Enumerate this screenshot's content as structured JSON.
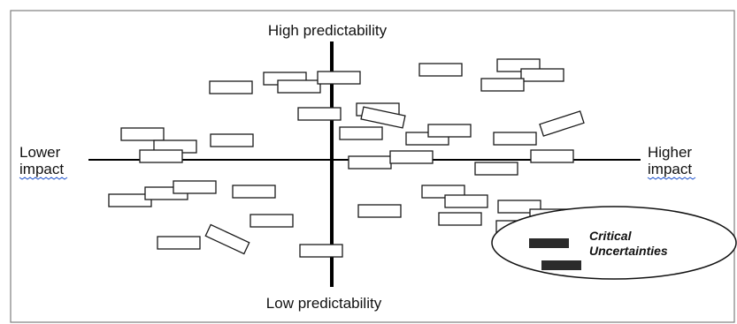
{
  "axes": {
    "top_label": "High predictability",
    "bottom_label": "Low predictability",
    "left_label_line1": "Lower",
    "left_label_line2": "impact",
    "right_label_line1": "Higher",
    "right_label_line2": "impact"
  },
  "callout": {
    "line1": "Critical",
    "line2": "Uncertainties"
  },
  "colors": {
    "axis": "#000000",
    "box_stroke": "#1a1a1a",
    "marker_fill": "#2b2b2b",
    "spellcheck_underline": "#2255cc"
  }
}
